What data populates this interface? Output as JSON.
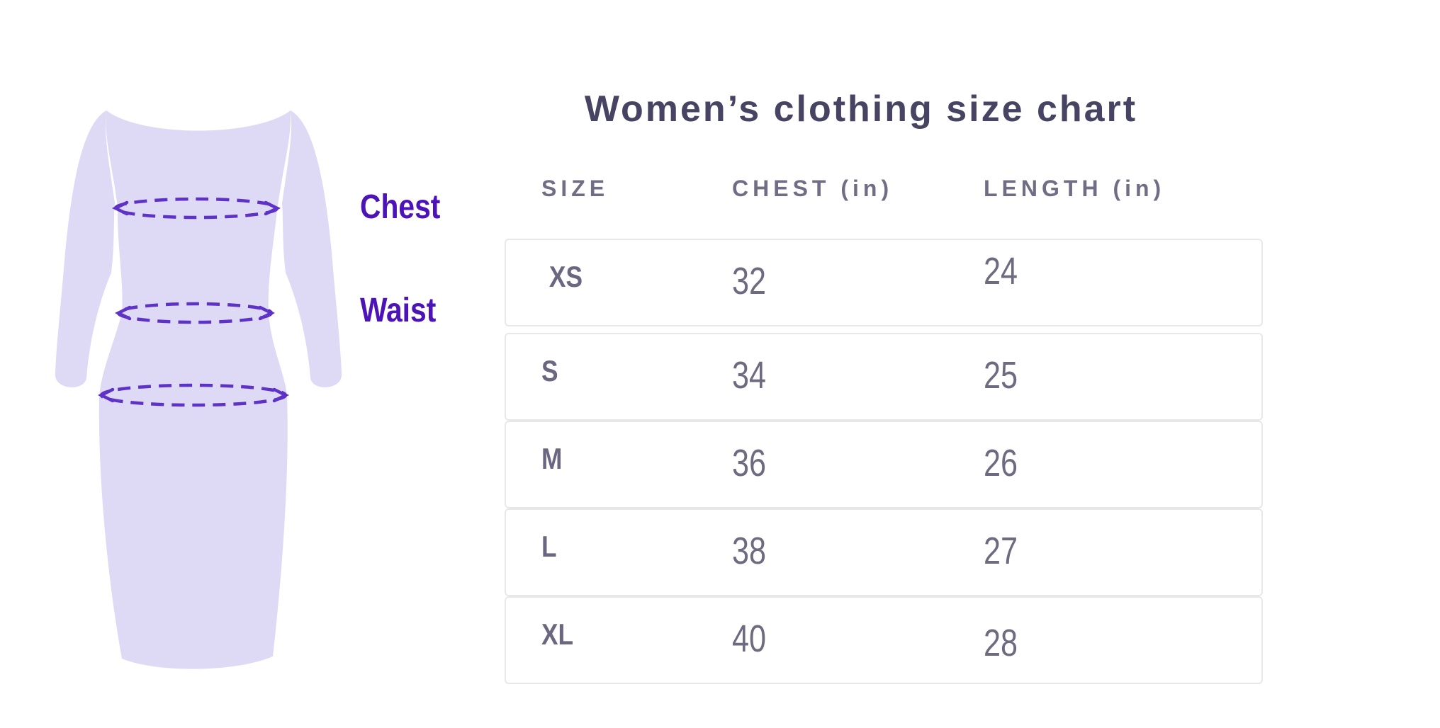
{
  "title": "Women’s clothing size chart",
  "diagram": {
    "chest_label": "Chest",
    "waist_label": "Waist"
  },
  "chart_data": {
    "type": "table",
    "title": "Women’s clothing size chart",
    "columns": [
      "SIZE",
      "CHEST (in)",
      "LENGTH (in)"
    ],
    "rows": [
      [
        "XS",
        "32",
        "24"
      ],
      [
        "S",
        "34",
        "25"
      ],
      [
        "M",
        "36",
        "26"
      ],
      [
        "L",
        "38",
        "27"
      ],
      [
        "XL",
        "40",
        "28"
      ]
    ],
    "legend_position": "none",
    "grid": false
  },
  "colors": {
    "dress_fill": "#DEDAF6",
    "measure_line": "#5E32C6",
    "label_text": "#4C13B7",
    "title_text": "#464363",
    "header_text": "#716D85",
    "cell_text": "#6E6A80",
    "size_text": "#6B6780",
    "row_border": "#E8E7EA",
    "page_bg": "#FFFFFF"
  }
}
